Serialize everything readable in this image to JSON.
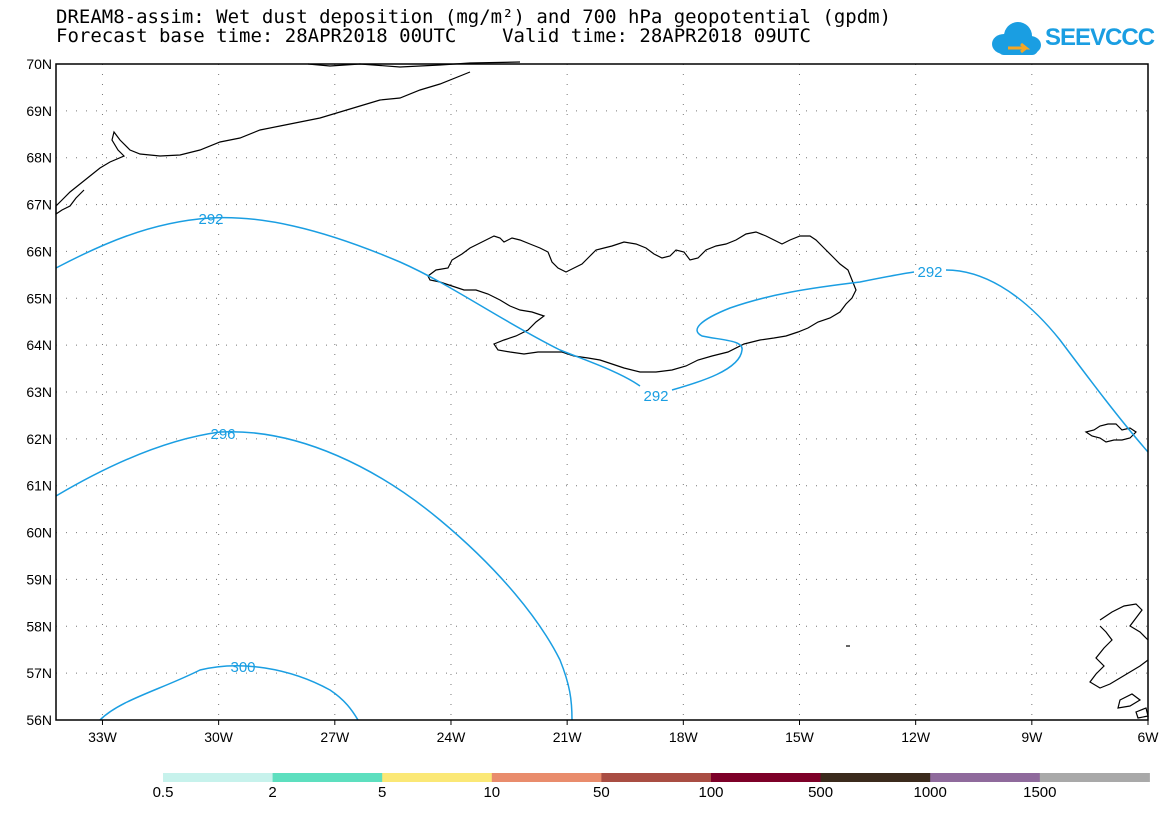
{
  "title_line1": "DREAM8-assim: Wet dust deposition (mg/m²) and 700 hPa geopotential (gpdm)",
  "title_line2": "Forecast base time: 28APR2018 00UTC    Valid time: 28APR2018 09UTC",
  "logo_text": "SEEVCCC",
  "lat_labels": [
    "70N",
    "69N",
    "68N",
    "67N",
    "66N",
    "65N",
    "64N",
    "63N",
    "62N",
    "61N",
    "60N",
    "59N",
    "58N",
    "57N",
    "56N"
  ],
  "lon_labels": [
    "33W",
    "30W",
    "27W",
    "24W",
    "21W",
    "18W",
    "15W",
    "12W",
    "9W",
    "6W"
  ],
  "contour_labels": {
    "c292a": "292",
    "c292b": "292",
    "c292c": "292",
    "c296": "296",
    "c300": "300"
  },
  "colorbar": {
    "labels": [
      "0.5",
      "2",
      "5",
      "10",
      "50",
      "100",
      "500",
      "1000",
      "1500"
    ],
    "colors": [
      "#c7f2ec",
      "#5ddfbf",
      "#fbe876",
      "#e98c6c",
      "#a94d43",
      "#7d0028",
      "#3b2a1c",
      "#8f6a9c",
      "#a9a9a9"
    ]
  },
  "contour_color": "#1a9ee2"
}
